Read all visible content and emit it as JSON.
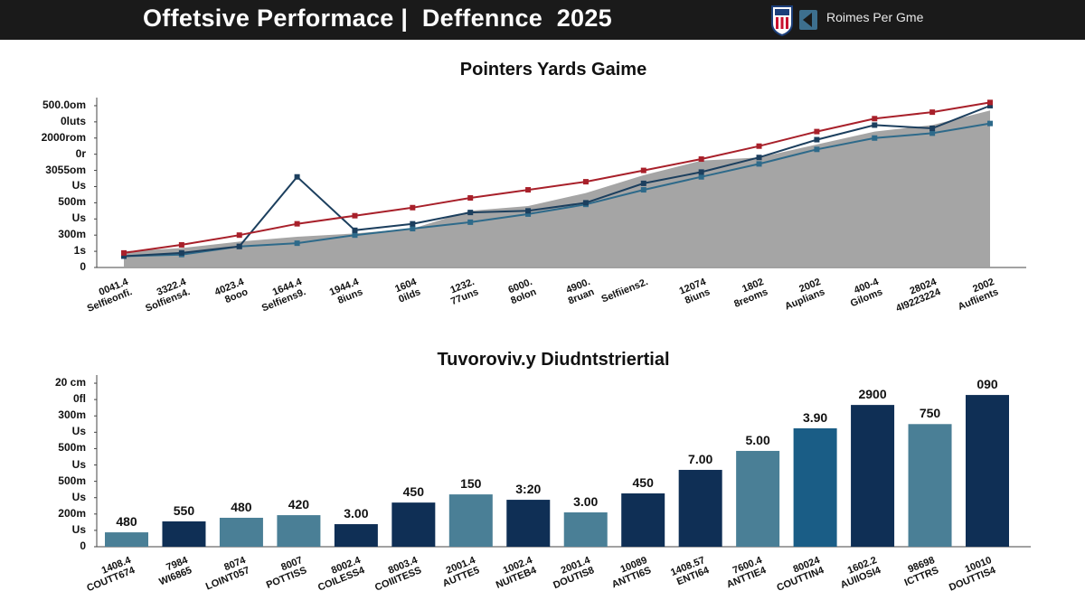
{
  "header": {
    "title": "Offetsive Performace |  Deffennce  2025",
    "subtitle": "Roimes Per Gme"
  },
  "chart_data": [
    {
      "type": "line",
      "title": "Pointers Yards Gaime",
      "categories": [
        "0041.4\nSelfieonfi.",
        "3322.4\nSolfiens4.",
        "4023.4\n8ooo",
        "1644.4\nSelfiens9.",
        "1944.4\n8iuns",
        "1604\n0ilds",
        "1232.\n77uns",
        "6000.\n8olon",
        "4900.\n8ruan",
        "Selfiiens2.",
        "12074\n8iuns",
        "1802\n8reoms",
        "2002\nAuplians",
        "400-4\nGiloms",
        "28024\n4I9223224",
        "2002\nAuflients"
      ],
      "series": [
        {
          "color": "#a0a0a0",
          "style": "area",
          "values": [
            1.0,
            1.2,
            1.6,
            1.9,
            2.1,
            2.4,
            3.5,
            3.8,
            4.6,
            5.7,
            6.6,
            6.8,
            7.6,
            8.4,
            8.8,
            9.7
          ]
        },
        {
          "color": "#2e6a8a",
          "style": "line",
          "values": [
            0.7,
            0.8,
            1.3,
            1.5,
            2.0,
            2.4,
            2.8,
            3.3,
            3.9,
            4.8,
            5.6,
            6.4,
            7.3,
            8.0,
            8.3,
            8.9
          ]
        },
        {
          "color": "#1c3f5e",
          "style": "line",
          "values": [
            0.7,
            0.9,
            1.3,
            5.6,
            2.3,
            2.7,
            3.4,
            3.5,
            4.0,
            5.2,
            5.9,
            6.8,
            7.9,
            8.8,
            8.6,
            10.0
          ]
        },
        {
          "color": "#a8202a",
          "style": "line",
          "values": [
            0.9,
            1.4,
            2.0,
            2.7,
            3.2,
            3.7,
            4.3,
            4.8,
            5.3,
            6.0,
            6.7,
            7.5,
            8.4,
            9.2,
            9.6,
            10.2
          ]
        }
      ],
      "ylim": [
        0,
        10.5
      ],
      "yticks": [
        0,
        {
          "value": 1,
          "label": "1s"
        },
        {
          "value": 2,
          "label": "300m"
        },
        {
          "value": 3,
          "label": "Us"
        },
        {
          "value": 4,
          "label": "500m"
        },
        {
          "value": 5,
          "label": "Us"
        },
        {
          "value": 6,
          "label": "3055om"
        },
        {
          "value": 7,
          "label": "0r"
        },
        {
          "value": 8,
          "label": "2000rom"
        },
        {
          "value": 9,
          "label": "0luts"
        },
        {
          "value": 10,
          "label": "500.0om"
        }
      ],
      "grid": false
    },
    {
      "type": "bar",
      "title": "Tuvoroviv.y Diudntstriertial",
      "categories": [
        "1408.4\nCOUTT674",
        "7984\nWI6865",
        "8074\nLOINT057",
        "8007\nPOTTISS",
        "8002.4\nCOILESS4",
        "8003.4\nCOIIITESS",
        "2001.4\nAUTTE5",
        "1002.4\nNUITEB4",
        "2001.4\nDOUTIS8",
        "10089\nANTTI6S",
        "1408.57\nENTI64",
        "7600.4\nANTTIE4",
        "80024\nCOUTTIN4",
        "1602.2\nAUIIOSI4",
        "98698\nICTTRS",
        "10010\nDOUTTIS4"
      ],
      "values": [
        0.88,
        1.55,
        1.77,
        1.93,
        1.38,
        2.7,
        3.2,
        2.87,
        2.1,
        3.26,
        4.7,
        5.86,
        7.24,
        8.67,
        7.5,
        9.28
      ],
      "colors": [
        "#4a7f96",
        "#0f2f55",
        "#4a7f96",
        "#4a7f96",
        "#0f2f55",
        "#0f2f55",
        "#4a7f96",
        "#0f2f55",
        "#4a7f96",
        "#0f2f55",
        "#0f2f55",
        "#4a7f96",
        "#1a5d86",
        "#0f2f55",
        "#4a7f96",
        "#0f2f55"
      ],
      "annotations": [
        "480",
        "550",
        "480",
        "420",
        "3.00",
        "450",
        "150",
        "3:20",
        "3.00",
        "450",
        "7.00",
        "5.00",
        "3.90",
        "2900",
        "750",
        "090"
      ],
      "ylim": [
        0,
        10.5
      ],
      "yticks": [
        0,
        {
          "value": 1,
          "label": "Us"
        },
        {
          "value": 2,
          "label": "200m"
        },
        {
          "value": 3,
          "label": "Us"
        },
        {
          "value": 4,
          "label": "500m"
        },
        {
          "value": 5,
          "label": "Us"
        },
        {
          "value": 6,
          "label": "500m"
        },
        {
          "value": 7,
          "label": "Us"
        },
        {
          "value": 8,
          "label": "300m"
        },
        {
          "value": 9,
          "label": "0fl"
        },
        {
          "value": 10,
          "label": "20 cm"
        }
      ],
      "grid": false
    }
  ]
}
